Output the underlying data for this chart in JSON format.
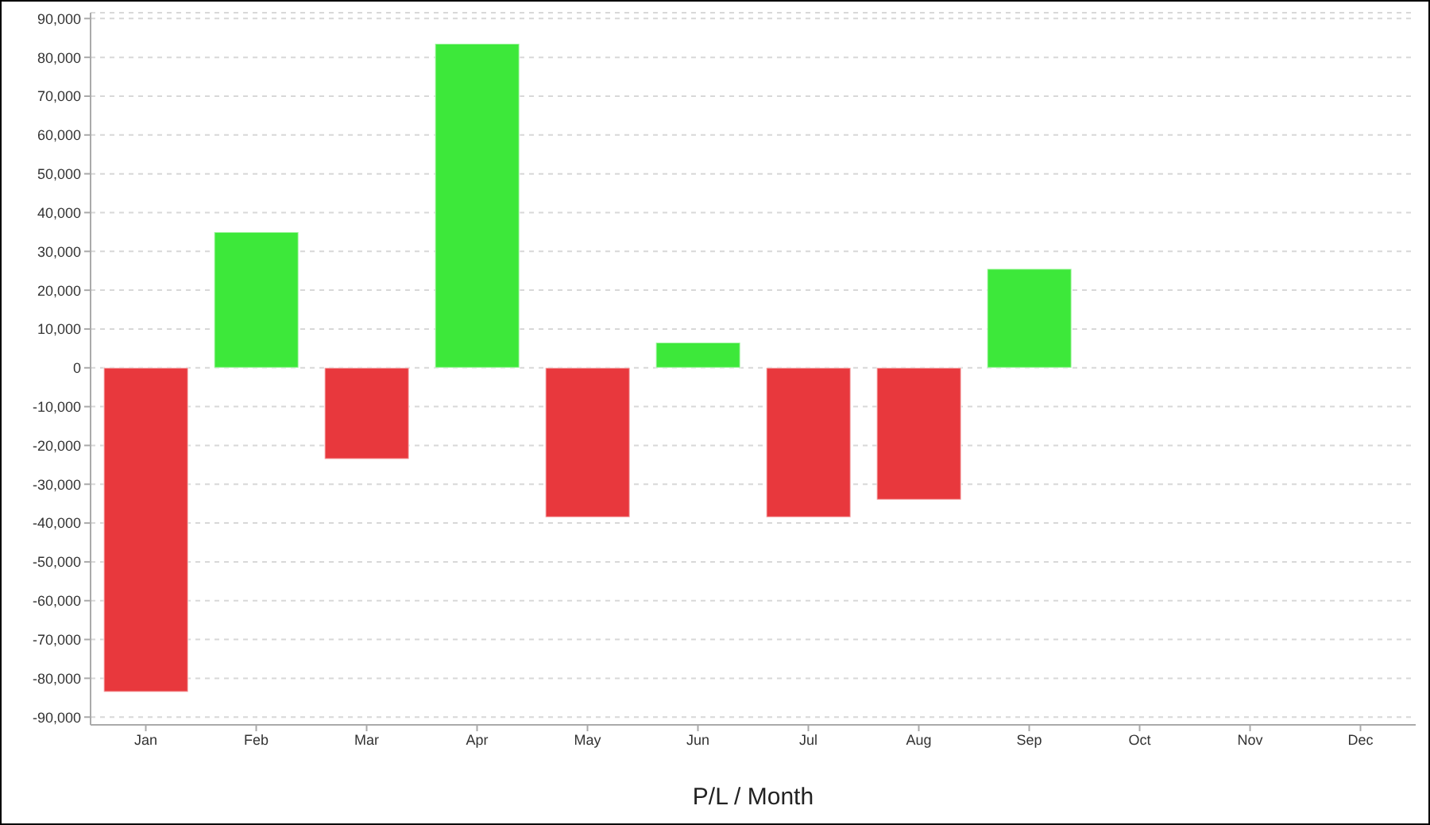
{
  "chart_data": {
    "type": "bar",
    "xlabel": "P/L / Month",
    "categories": [
      "Jan",
      "Feb",
      "Mar",
      "Apr",
      "May",
      "Jun",
      "Jul",
      "Aug",
      "Sep",
      "Oct",
      "Nov",
      "Dec"
    ],
    "values": [
      -83500,
      35000,
      -23500,
      83500,
      -38500,
      6500,
      -38500,
      -34000,
      25500,
      null,
      null,
      null
    ],
    "colors": [
      "#e8383d",
      "#3de83a",
      "#e8383d",
      "#3de83a",
      "#e8383d",
      "#3de83a",
      "#e8383d",
      "#e8383d",
      "#3de83a",
      "#e8383d",
      "#e8383d",
      "#e8383d"
    ],
    "ylim": [
      -92000,
      91500
    ],
    "yticks": [
      {
        "value": -90000,
        "label": "-90,000"
      },
      {
        "value": -80000,
        "label": "-80,000"
      },
      {
        "value": -70000,
        "label": "-70,000"
      },
      {
        "value": -60000,
        "label": "-60,000"
      },
      {
        "value": -50000,
        "label": "-50,000"
      },
      {
        "value": -40000,
        "label": "-40,000"
      },
      {
        "value": -30000,
        "label": "-30,000"
      },
      {
        "value": -20000,
        "label": "-20,000"
      },
      {
        "value": -10000,
        "label": "-10,000"
      },
      0,
      {
        "value": 10000,
        "label": "10,000"
      },
      {
        "value": 20000,
        "label": "20,000"
      },
      {
        "value": 30000,
        "label": "30,000"
      },
      {
        "value": 40000,
        "label": "40,000"
      },
      {
        "value": 50000,
        "label": "50,000"
      },
      {
        "value": 60000,
        "label": "60,000"
      },
      {
        "value": 70000,
        "label": "70,000"
      },
      {
        "value": 80000,
        "label": "80,000"
      },
      {
        "value": 90000,
        "label": "90,000"
      }
    ],
    "grid": "y"
  }
}
